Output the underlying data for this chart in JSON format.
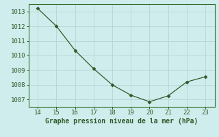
{
  "x": [
    14,
    15,
    16,
    17,
    18,
    19,
    20,
    21,
    22,
    23
  ],
  "y": [
    1013.2,
    1012.0,
    1010.35,
    1009.1,
    1008.0,
    1007.3,
    1006.85,
    1007.25,
    1008.2,
    1008.55
  ],
  "line_color": "#2d5a27",
  "marker_color": "#2d5a27",
  "bg_color": "#d0eded",
  "grid_color": "#b8d8d8",
  "xlabel": "Graphe pression niveau de la mer (hPa)",
  "xlabel_color": "#2d5a27",
  "tick_color": "#2d5a27",
  "xlim": [
    13.5,
    23.5
  ],
  "ylim": [
    1006.5,
    1013.5
  ],
  "xticks": [
    14,
    15,
    16,
    17,
    18,
    19,
    20,
    21,
    22,
    23
  ],
  "yticks": [
    1007,
    1008,
    1009,
    1010,
    1011,
    1012,
    1013
  ],
  "spine_color": "#2d6e27",
  "label_fontsize": 6.5,
  "xlabel_fontsize": 7
}
